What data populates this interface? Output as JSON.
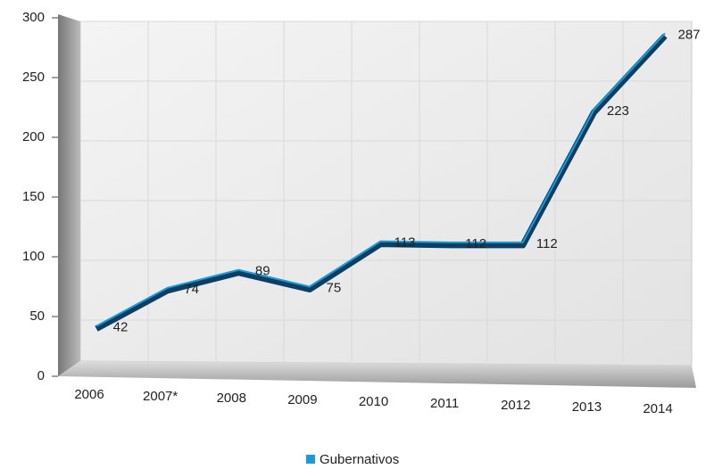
{
  "chart_data": {
    "type": "line",
    "categories": [
      "2006",
      "2007*",
      "2008",
      "2009",
      "2010",
      "2011",
      "2012",
      "2013",
      "2014"
    ],
    "series": [
      {
        "name": "Gubernativos",
        "color": "#1a9ad6",
        "values": [
          42,
          74,
          89,
          75,
          113,
          112,
          112,
          223,
          287
        ]
      }
    ],
    "ylim": [
      0,
      300
    ],
    "yticks": [
      0,
      50,
      100,
      150,
      200,
      250,
      300
    ],
    "grid": true,
    "legend": "bottom"
  }
}
